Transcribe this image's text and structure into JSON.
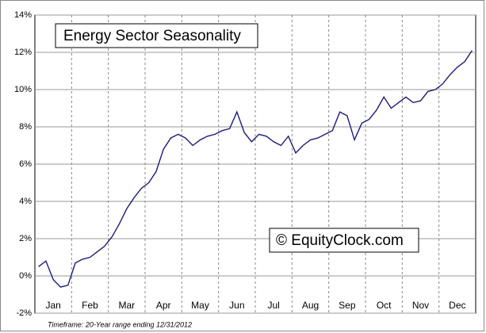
{
  "chart_data": {
    "type": "line",
    "title": "Energy Sector Seasonality",
    "watermark": "© EquityClock.com",
    "footnote": "Timeframe: 20-Year range ending 12/31/2012",
    "categories": [
      null,
      null,
      "Jan",
      null,
      null,
      null,
      null,
      "Feb",
      null,
      null,
      null,
      null,
      "Mar",
      null,
      null,
      null,
      null,
      "Apr",
      null,
      null,
      null,
      null,
      "May",
      null,
      null,
      null,
      null,
      "Jun",
      null,
      null,
      null,
      null,
      "Jul",
      null,
      null,
      null,
      null,
      "Aug",
      null,
      null,
      null,
      null,
      "Sep",
      null,
      null,
      null,
      null,
      "Oct",
      null,
      null,
      null,
      null,
      "Nov",
      null,
      null,
      null,
      null,
      "Dec",
      null,
      null
    ],
    "series": [
      {
        "color": "#1c1c7c",
        "values": [
          0.5,
          0.8,
          -0.2,
          -0.6,
          -0.5,
          0.7,
          0.9,
          1.0,
          1.3,
          1.6,
          2.1,
          2.8,
          3.6,
          4.2,
          4.7,
          5.0,
          5.6,
          6.8,
          7.4,
          7.6,
          7.4,
          7.0,
          7.3,
          7.5,
          7.6,
          7.8,
          7.9,
          8.8,
          7.7,
          7.2,
          7.6,
          7.5,
          7.2,
          7.0,
          7.5,
          6.6,
          7.0,
          7.3,
          7.4,
          7.6,
          7.8,
          8.8,
          8.6,
          7.3,
          8.2,
          8.4,
          8.9,
          9.6,
          9.0,
          9.3,
          9.6,
          9.3,
          9.4,
          9.9,
          10.0,
          10.3,
          10.8,
          11.2,
          11.5,
          12.1
        ]
      }
    ],
    "ylim": [
      -2,
      14
    ],
    "yticks": [
      {
        "value": -2,
        "label": "-2%"
      },
      {
        "value": 0,
        "label": "0%"
      },
      {
        "value": 2,
        "label": "2%"
      },
      {
        "value": 4,
        "label": "4%"
      },
      {
        "value": 6,
        "label": "6%"
      },
      {
        "value": 8,
        "label": "8%"
      },
      {
        "value": 10,
        "label": "10%"
      },
      {
        "value": 12,
        "label": "12%"
      },
      {
        "value": 14,
        "label": "14%"
      }
    ],
    "grid": true
  }
}
